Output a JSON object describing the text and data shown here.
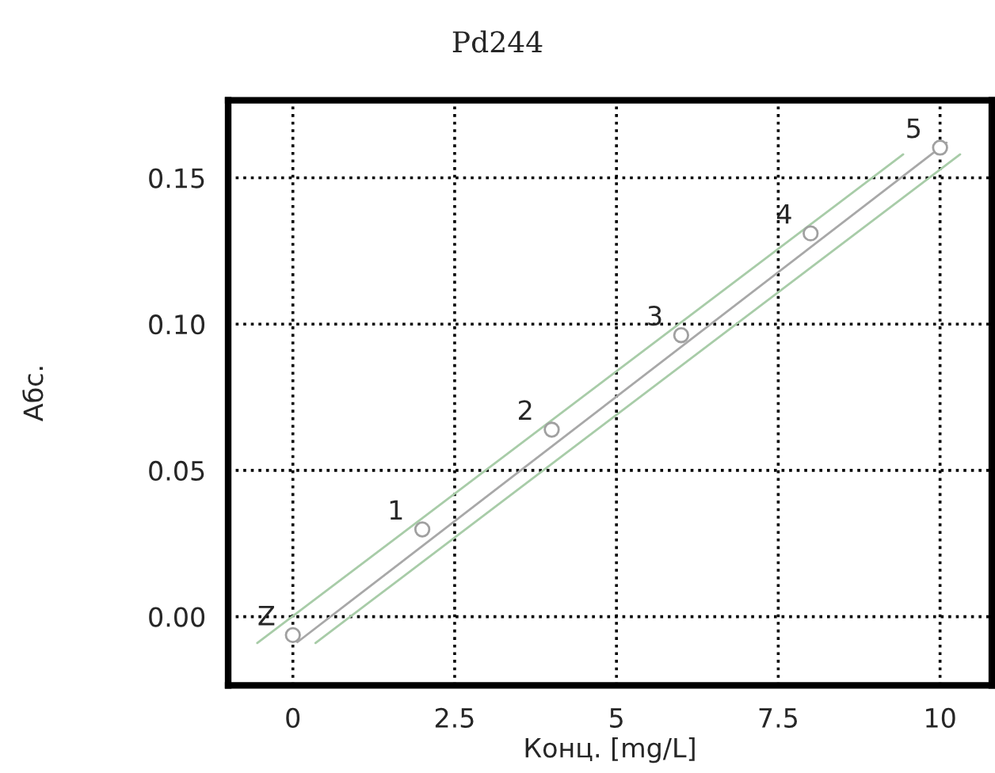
{
  "chart_data": {
    "type": "scatter",
    "title": "Pd244",
    "xlabel": "Конц. [mg/L]",
    "ylabel": "Абс.",
    "series": [
      {
        "type": "line",
        "color": "#a8cca8",
        "x": [
          -0.55,
          9.43
        ],
        "values": [
          -0.009,
          0.158
        ],
        "marker": "none"
      },
      {
        "type": "line",
        "color": "#a8a8a8",
        "x": [
          0.07,
          10.1
        ],
        "values": [
          -0.0087,
          0.162
        ],
        "marker": "none"
      },
      {
        "type": "line",
        "color": "#a8cca8",
        "x": [
          0.35,
          10.31
        ],
        "values": [
          -0.009,
          0.158
        ],
        "marker": "none"
      },
      {
        "color": "#a0a0a0",
        "x": [
          0,
          2,
          4,
          6,
          8,
          10
        ],
        "values": [
          -0.0063,
          0.0298,
          0.0639,
          0.0962,
          0.131,
          0.1603
        ],
        "marker": "circle"
      }
    ],
    "annotations": [
      {
        "text": "Z",
        "x": 0,
        "y": -0.0063
      },
      {
        "text": "1",
        "x": 2,
        "y": 0.0298
      },
      {
        "text": "2",
        "x": 4,
        "y": 0.0639
      },
      {
        "text": "3",
        "x": 6,
        "y": 0.0962
      },
      {
        "text": "4",
        "x": 8,
        "y": 0.131
      },
      {
        "text": "5",
        "x": 10,
        "y": 0.1603
      }
    ],
    "xlim": [
      -1,
      10.8
    ],
    "ylim": [
      -0.0235,
      0.1765
    ],
    "xticks": [
      0,
      2.5,
      5,
      7.5,
      10
    ],
    "yticks": [
      {
        "value": 0,
        "label": "0.00"
      },
      {
        "value": 0.05,
        "label": "0.05"
      },
      {
        "value": 0.1,
        "label": "0.10"
      },
      {
        "value": 0.15,
        "label": "0.15"
      }
    ],
    "grid": true
  }
}
